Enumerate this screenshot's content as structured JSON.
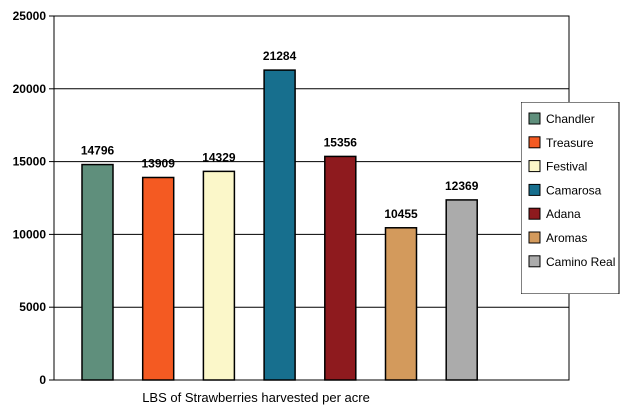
{
  "chart_data": {
    "type": "bar",
    "title": "",
    "xlabel": "LBS of Strawberries harvested per acre",
    "ylabel": "",
    "ylim": [
      0,
      25000
    ],
    "yticks": [
      0,
      5000,
      10000,
      15000,
      20000,
      25000
    ],
    "grid": true,
    "legend_position": "right",
    "series": [
      {
        "name": "Chandler",
        "value": 14796,
        "color": "#5f8f7c"
      },
      {
        "name": "Treasure",
        "value": 13909,
        "color": "#f45a22"
      },
      {
        "name": "Festival",
        "value": 14329,
        "color": "#fbf7c9"
      },
      {
        "name": "Camarosa",
        "value": 21284,
        "color": "#176f8e"
      },
      {
        "name": "Adana",
        "value": 15356,
        "color": "#8e1a1e"
      },
      {
        "name": "Aromas",
        "value": 10455,
        "color": "#d39a5c"
      },
      {
        "name": "Camino Real",
        "value": 12369,
        "color": "#ababab"
      }
    ]
  }
}
